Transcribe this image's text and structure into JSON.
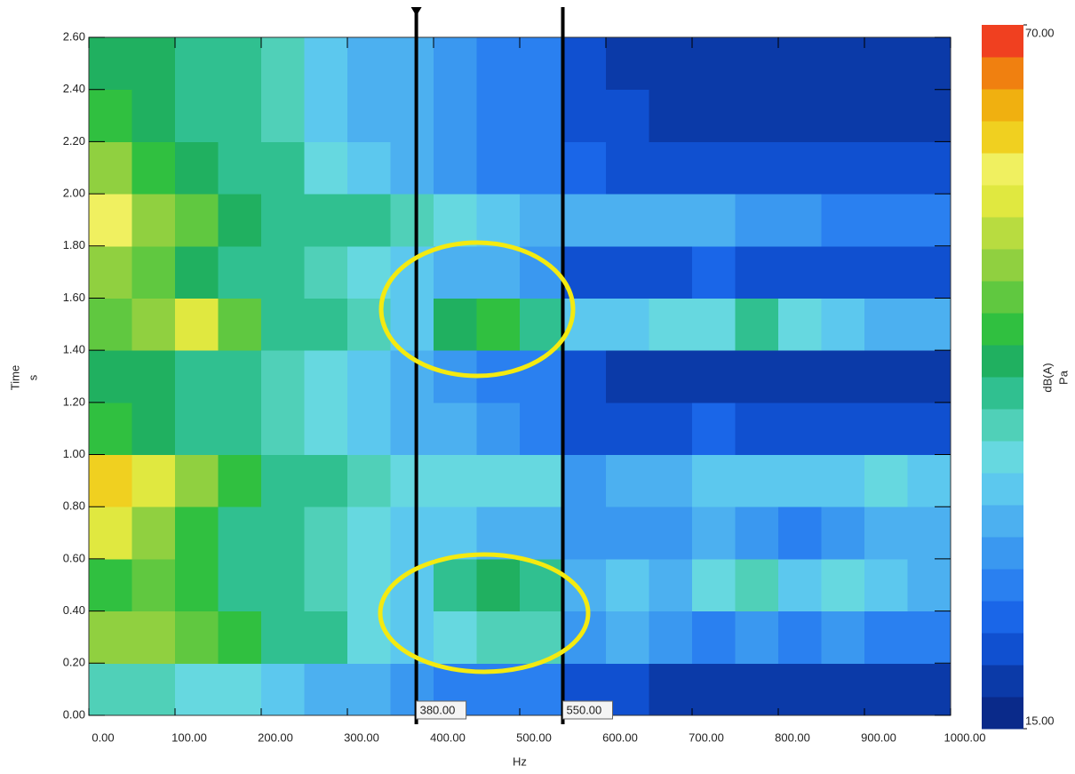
{
  "chart_data": {
    "type": "heatmap",
    "xlabel": "Hz",
    "ylabel": "Time",
    "yunit": "s",
    "zlabel": "dB(A)",
    "zunit": "Pa",
    "xlim": [
      0,
      1000
    ],
    "ylim": [
      0,
      2.6
    ],
    "zlim": [
      15,
      70
    ],
    "xticks": [
      {
        "value": 0,
        "label": "0.00"
      },
      {
        "value": 100,
        "label": "100.00"
      },
      {
        "value": 200,
        "label": "200.00"
      },
      {
        "value": 300,
        "label": "300.00"
      },
      {
        "value": 400,
        "label": "400.00"
      },
      {
        "value": 500,
        "label": "500.00"
      },
      {
        "value": 600,
        "label": "600.00"
      },
      {
        "value": 700,
        "label": "700.00"
      },
      {
        "value": 800,
        "label": "800.00"
      },
      {
        "value": 900,
        "label": "900.00"
      },
      {
        "value": 1000,
        "label": "1000.00"
      }
    ],
    "yticks": [
      {
        "value": 0,
        "label": "0.00"
      },
      {
        "value": 0.2,
        "label": "0.20"
      },
      {
        "value": 0.4,
        "label": "0.40"
      },
      {
        "value": 0.6,
        "label": "0.60"
      },
      {
        "value": 0.8,
        "label": "0.80"
      },
      {
        "value": 1,
        "label": "1.00"
      },
      {
        "value": 1.2,
        "label": "1.20"
      },
      {
        "value": 1.4,
        "label": "1.40"
      },
      {
        "value": 1.6,
        "label": "1.60"
      },
      {
        "value": 1.8,
        "label": "1.80"
      },
      {
        "value": 2,
        "label": "2.00"
      },
      {
        "value": 2.2,
        "label": "2.20"
      },
      {
        "value": 2.4,
        "label": "2.40"
      },
      {
        "value": 2.6,
        "label": "2.60"
      }
    ],
    "zticks": [
      {
        "value": 15,
        "label": "15.00"
      },
      {
        "value": 70,
        "label": "70.00"
      }
    ],
    "cursors": [
      {
        "value": 380,
        "label": "380.00"
      },
      {
        "value": 550,
        "label": "550.00"
      }
    ],
    "colorscale": [
      "#0a2a8a",
      "#0b3aa8",
      "#1050d0",
      "#1a66e8",
      "#2a80f0",
      "#3a98f0",
      "#4cb0f0",
      "#5cc8ee",
      "#66d8e0",
      "#50d0b8",
      "#30c090",
      "#20b060",
      "#30c040",
      "#60c840",
      "#90d040",
      "#b8dc40",
      "#e0e840",
      "#f0f060",
      "#f0d020",
      "#f0b010",
      "#f08010",
      "#f04020"
    ],
    "xbins": [
      0,
      50,
      100,
      150,
      200,
      250,
      300,
      350,
      400,
      450,
      500,
      550,
      600,
      650,
      700,
      750,
      800,
      850,
      900,
      950,
      1000
    ],
    "ybins": [
      0,
      0.2,
      0.4,
      0.6,
      0.8,
      1,
      1.2,
      1.4,
      1.6,
      1.8,
      2,
      2.2,
      2.4,
      2.6
    ],
    "values": [
      [
        38,
        38,
        35,
        35,
        33,
        32,
        30,
        28,
        27,
        25,
        25,
        20,
        20,
        19,
        18,
        18,
        18,
        18,
        18,
        18
      ],
      [
        50,
        50,
        48,
        46,
        42,
        40,
        36,
        33,
        35,
        38,
        38,
        28,
        30,
        28,
        26,
        28,
        27,
        28,
        27,
        26
      ],
      [
        46,
        48,
        45,
        42,
        40,
        38,
        35,
        33,
        42,
        44,
        42,
        32,
        34,
        32,
        36,
        38,
        34,
        35,
        33,
        30
      ],
      [
        55,
        52,
        46,
        42,
        40,
        38,
        36,
        34,
        33,
        32,
        32,
        28,
        28,
        28,
        30,
        28,
        26,
        28,
        30,
        30
      ],
      [
        62,
        55,
        50,
        45,
        42,
        40,
        38,
        36,
        36,
        35,
        36,
        28,
        30,
        32,
        34,
        34,
        33,
        34,
        36,
        34
      ],
      [
        45,
        44,
        42,
        40,
        38,
        36,
        33,
        31,
        30,
        28,
        27,
        22,
        22,
        22,
        24,
        22,
        21,
        21,
        22,
        22
      ],
      [
        44,
        44,
        42,
        40,
        38,
        35,
        33,
        30,
        28,
        27,
        26,
        20,
        19,
        19,
        19,
        19,
        19,
        19,
        19,
        19
      ],
      [
        48,
        50,
        55,
        48,
        42,
        40,
        38,
        34,
        44,
        45,
        42,
        34,
        34,
        35,
        36,
        40,
        36,
        33,
        32,
        30
      ],
      [
        50,
        48,
        44,
        42,
        40,
        38,
        36,
        33,
        32,
        30,
        29,
        22,
        22,
        22,
        24,
        22,
        22,
        21,
        21,
        20
      ],
      [
        58,
        52,
        48,
        44,
        42,
        40,
        40,
        38,
        36,
        34,
        32,
        30,
        32,
        30,
        30,
        28,
        28,
        27,
        27,
        26
      ],
      [
        50,
        46,
        44,
        42,
        40,
        36,
        33,
        30,
        28,
        27,
        26,
        24,
        22,
        22,
        21,
        21,
        20,
        20,
        20,
        20
      ],
      [
        46,
        44,
        42,
        40,
        38,
        34,
        32,
        30,
        28,
        27,
        26,
        21,
        20,
        19,
        19,
        19,
        19,
        19,
        19,
        19
      ],
      [
        44,
        44,
        42,
        42,
        38,
        34,
        32,
        30,
        28,
        27,
        26,
        20,
        19,
        19,
        19,
        19,
        19,
        19,
        19,
        19
      ]
    ]
  }
}
